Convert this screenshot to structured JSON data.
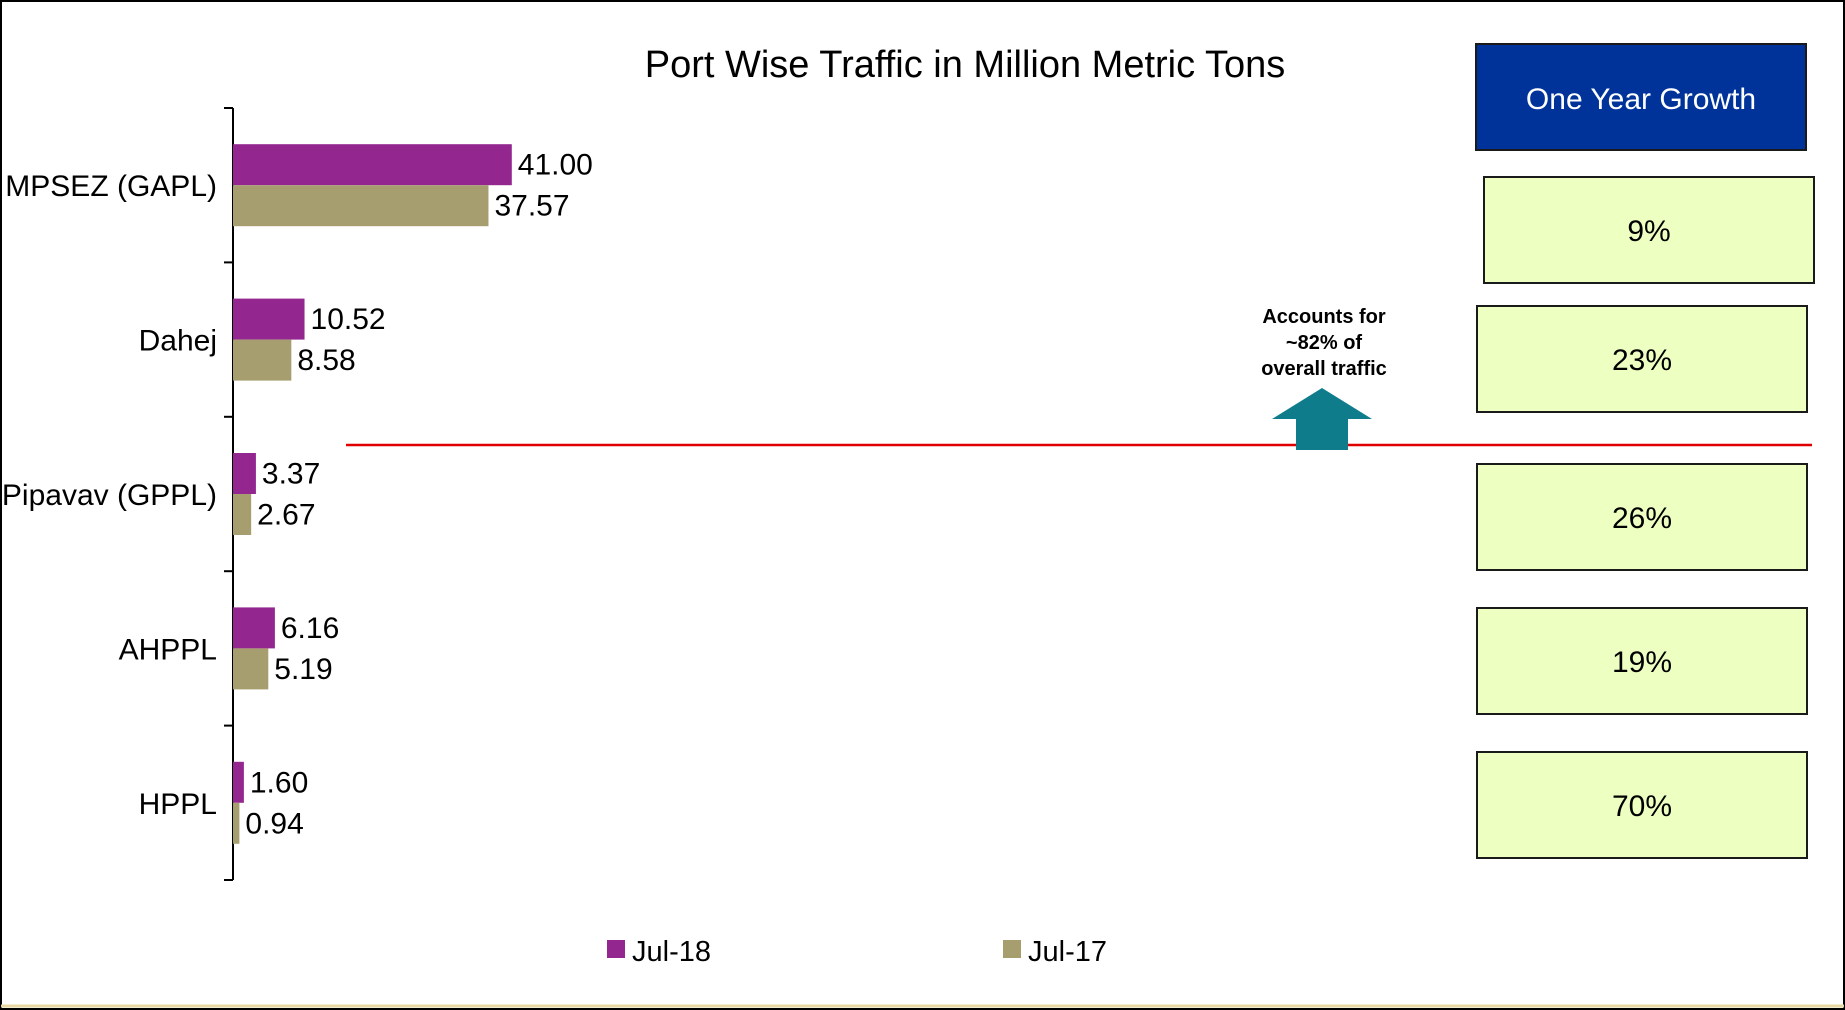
{
  "chart_data": {
    "type": "bar",
    "orientation": "horizontal",
    "title": "Port Wise Traffic in Million Metric Tons",
    "categories": [
      "MPSEZ (GAPL)",
      "Dahej",
      "Pipavav (GPPL)",
      "AHPPL",
      "HPPL"
    ],
    "series": [
      {
        "name": "Jul-18",
        "values": [
          41.0,
          10.52,
          3.37,
          6.16,
          1.6
        ],
        "labels": [
          "41.00",
          "10.52",
          "3.37",
          "6.16",
          "1.60"
        ]
      },
      {
        "name": "Jul-17",
        "values": [
          37.57,
          8.58,
          2.67,
          5.19,
          0.94
        ],
        "labels": [
          "37.57",
          "8.58",
          "2.67",
          "5.19",
          "0.94"
        ]
      }
    ],
    "xlim": [
      0,
      180
    ],
    "legend": "bottom",
    "grid": false,
    "colors": {
      "Jul-18": "#93278F",
      "Jul-17": "#A79E70"
    }
  },
  "growth_panel": {
    "header": "One Year Growth",
    "values": [
      "9%",
      "23%",
      "26%",
      "19%",
      "70%"
    ],
    "header_color": "#003399",
    "box_color": "#EEFFC2"
  },
  "annotation": {
    "lines": [
      "Accounts for",
      "~82% of",
      "overall traffic"
    ],
    "arrow_color": "#0F7C8C",
    "line_color": "#E00000"
  }
}
